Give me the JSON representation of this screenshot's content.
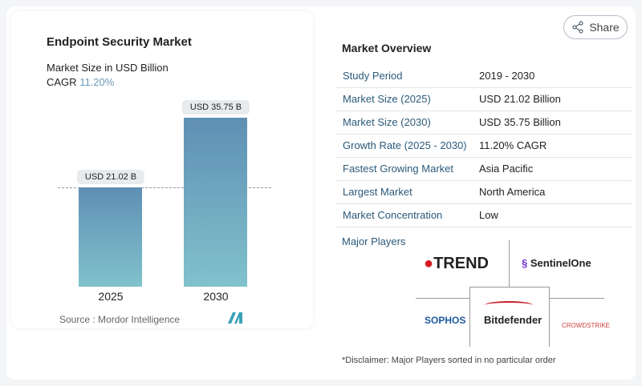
{
  "share_label": "Share",
  "chart_data": {
    "type": "bar",
    "title": "Endpoint Security Market",
    "subtitle": "Market Size in USD Billion",
    "cagr_label": "CAGR",
    "cagr_value": "11.20%",
    "categories": [
      "2025",
      "2030"
    ],
    "values": [
      21.02,
      35.75
    ],
    "data_labels": [
      "USD 21.02 B",
      "USD 35.75 B"
    ],
    "source": "Source :  Mordor Intelligence",
    "colors": {
      "bar_top": "#5f8fb4",
      "bar_bottom": "#80c2cc"
    }
  },
  "overview": {
    "title": "Market Overview",
    "rows": [
      {
        "k": "Study Period",
        "v": "2019 - 2030"
      },
      {
        "k": "Market Size (2025)",
        "v": "USD 21.02 Billion"
      },
      {
        "k": "Market Size (2030)",
        "v": "USD 35.75 Billion"
      },
      {
        "k": "Growth Rate (2025 - 2030)",
        "v": "11.20% CAGR"
      },
      {
        "k": "Fastest Growing Market",
        "v": "Asia Pacific"
      },
      {
        "k": "Largest Market",
        "v": "North America"
      },
      {
        "k": "Market Concentration",
        "v": "Low"
      }
    ]
  },
  "major_players": {
    "title": "Major Players",
    "logos": [
      "TREND",
      "SentinelOne",
      "SOPHOS",
      "Bitdefender",
      "CROWDSTRIKE"
    ]
  },
  "disclaimer": "*Disclaimer: Major Players sorted in no particular order"
}
